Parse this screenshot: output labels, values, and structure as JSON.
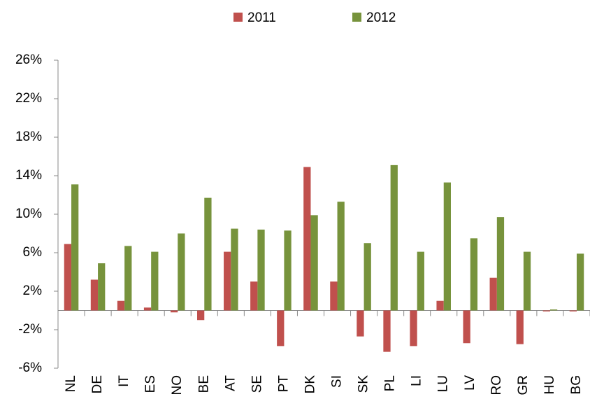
{
  "chart_data": {
    "type": "bar",
    "categories": [
      "NL",
      "DE",
      "IT",
      "ES",
      "NO",
      "BE",
      "AT",
      "SE",
      "PT",
      "DK",
      "SI",
      "SK",
      "PL",
      "LI",
      "LU",
      "LV",
      "RO",
      "GR",
      "HU",
      "BG"
    ],
    "series": [
      {
        "name": "2011",
        "color": "#c0504d",
        "values": [
          6.9,
          3.2,
          1.0,
          0.3,
          -0.2,
          -1.0,
          6.1,
          3.0,
          -3.7,
          14.9,
          3.0,
          -2.7,
          -4.3,
          -3.7,
          1.0,
          -3.4,
          3.4,
          -3.5,
          -0.1,
          -0.1
        ]
      },
      {
        "name": "2012",
        "color": "#77933c",
        "values": [
          13.1,
          4.9,
          6.7,
          6.1,
          8.0,
          11.7,
          8.5,
          8.4,
          8.3,
          9.9,
          11.3,
          7.0,
          15.1,
          6.1,
          13.3,
          7.5,
          9.7,
          6.1,
          0.1,
          5.9
        ]
      }
    ],
    "ylim": [
      -6,
      26
    ],
    "yticks": [
      {
        "value": -6,
        "label": "-6%"
      },
      {
        "value": -2,
        "label": "-2%"
      },
      {
        "value": 2,
        "label": "2%"
      },
      {
        "value": 6,
        "label": "6%"
      },
      {
        "value": 10,
        "label": "10%"
      },
      {
        "value": 14,
        "label": "14%"
      },
      {
        "value": 18,
        "label": "18%"
      },
      {
        "value": 22,
        "label": "22%"
      },
      {
        "value": 26,
        "label": "26%"
      }
    ],
    "legend": "top"
  }
}
